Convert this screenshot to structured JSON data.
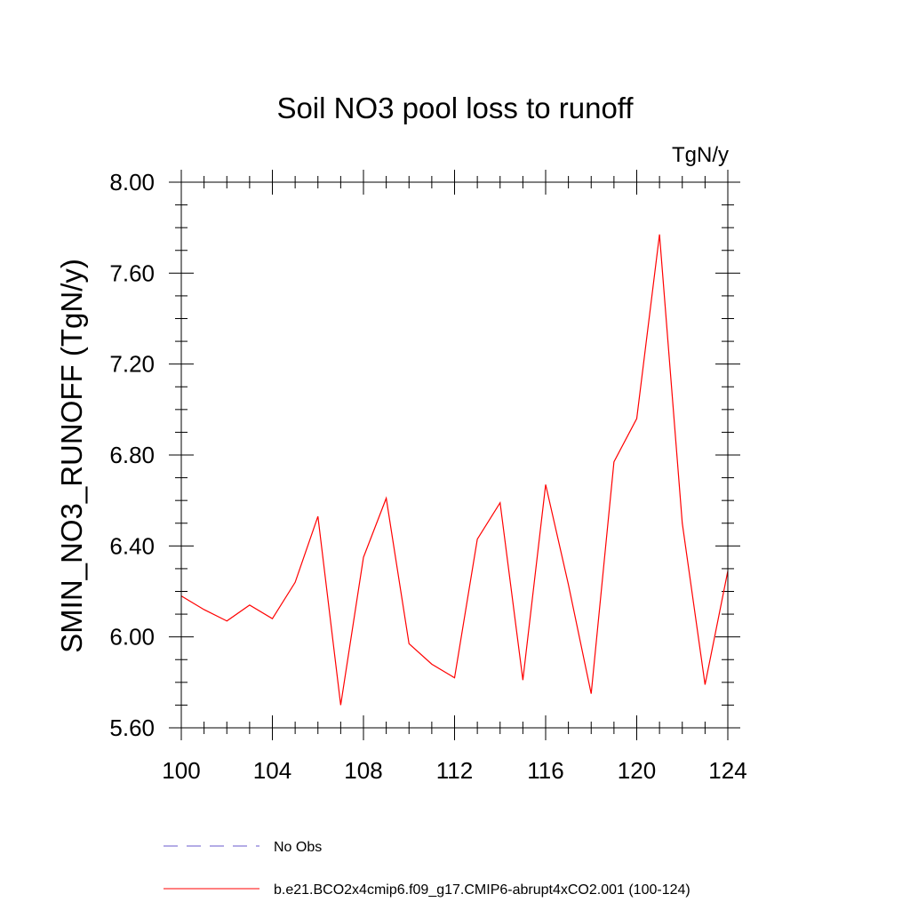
{
  "chart_data": {
    "type": "line",
    "title": "Soil NO3 pool loss to runoff",
    "units": "TgN/y",
    "ylabel": "SMIN_NO3_RUNOFF  (TgN/y)",
    "xlabel": "",
    "xlim": [
      100,
      124
    ],
    "ylim": [
      5.6,
      8.0
    ],
    "x_ticks": [
      "100",
      "104",
      "108",
      "112",
      "116",
      "120",
      "124"
    ],
    "y_ticks": [
      "5.60",
      "6.00",
      "6.40",
      "6.80",
      "7.20",
      "7.60",
      "8.00"
    ],
    "grid": false,
    "legend_position": "bottom",
    "x": [
      100,
      101,
      102,
      103,
      104,
      105,
      106,
      107,
      108,
      109,
      110,
      111,
      112,
      113,
      114,
      115,
      116,
      117,
      118,
      119,
      120,
      121,
      122,
      123,
      124
    ],
    "series": [
      {
        "name": "b.e21.BCO2x4cmip6.f09_g17.CMIP6-abrupt4xCO2.001 (100-124)",
        "color": "#ff0000",
        "style": "solid",
        "values": [
          6.18,
          6.12,
          6.07,
          6.14,
          6.08,
          6.24,
          6.53,
          5.7,
          6.35,
          6.61,
          5.97,
          5.88,
          5.82,
          6.43,
          6.59,
          5.81,
          6.67,
          6.23,
          5.75,
          6.77,
          6.96,
          7.77,
          6.5,
          5.79,
          6.29
        ]
      }
    ],
    "legend": [
      {
        "label": "No Obs",
        "color": "#6a5acd",
        "style": "dashed"
      },
      {
        "label": "b.e21.BCO2x4cmip6.f09_g17.CMIP6-abrupt4xCO2.001 (100-124)",
        "color": "#ff0000",
        "style": "solid"
      }
    ]
  }
}
